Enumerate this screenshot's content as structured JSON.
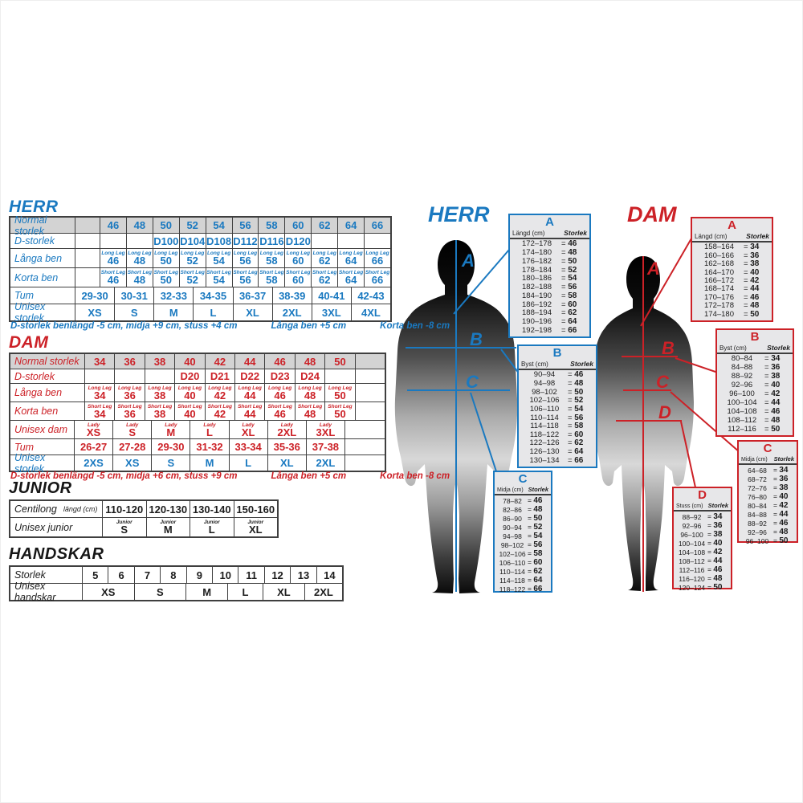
{
  "colors": {
    "blue": "#1a79c0",
    "red": "#cc2127",
    "border": "#3f3f3f",
    "header_bg": "#d3d3d3",
    "panel_bg": "#e7e7e9"
  },
  "herr": {
    "title": "HERR",
    "rows": {
      "normal": {
        "label": "Normal storlek",
        "values": [
          "",
          "46",
          "48",
          "50",
          "52",
          "54",
          "56",
          "58",
          "60",
          "62",
          "64",
          "66"
        ]
      },
      "d": {
        "label": "D-storlek",
        "values": [
          "",
          "",
          "",
          "D100",
          "D104",
          "D108",
          "D112",
          "D116",
          "D120",
          "",
          "",
          ""
        ]
      },
      "langa": {
        "label": "Långa ben",
        "sub": "Long Leg",
        "values": [
          "",
          "46",
          "48",
          "50",
          "52",
          "54",
          "56",
          "58",
          "60",
          "62",
          "64",
          "66"
        ]
      },
      "korta": {
        "label": "Korta ben",
        "sub": "Short Leg",
        "values": [
          "",
          "46",
          "48",
          "50",
          "52",
          "54",
          "56",
          "58",
          "60",
          "62",
          "64",
          "66"
        ]
      },
      "tum": {
        "label": "Tum",
        "values": [
          "29-30",
          "30-31",
          "32-33",
          "34-35",
          "36-37",
          "38-39",
          "40-41",
          "42-43"
        ]
      },
      "unisex": {
        "label": "Unisex storlek",
        "values": [
          "XS",
          "S",
          "M",
          "L",
          "XL",
          "2XL",
          "3XL",
          "4XL"
        ]
      }
    },
    "footnote": [
      "D-storlek benlängd -5 cm, midja +9 cm, stuss +4 cm",
      "Långa ben +5 cm",
      "Korta ben -8 cm"
    ]
  },
  "dam": {
    "title": "DAM",
    "rows": {
      "normal": {
        "label": "Normal storlek",
        "values": [
          "34",
          "36",
          "38",
          "40",
          "42",
          "44",
          "46",
          "48",
          "50",
          ""
        ]
      },
      "d": {
        "label": "D-storlek",
        "values": [
          "",
          "",
          "",
          "D20",
          "D21",
          "D22",
          "D23",
          "D24",
          "",
          ""
        ]
      },
      "langa": {
        "label": "Långa ben",
        "sub": "Long Leg",
        "values": [
          "34",
          "36",
          "38",
          "40",
          "42",
          "44",
          "46",
          "48",
          "50",
          ""
        ]
      },
      "korta": {
        "label": "Korta ben",
        "sub": "Short Leg",
        "values": [
          "34",
          "36",
          "38",
          "40",
          "42",
          "44",
          "46",
          "48",
          "50",
          ""
        ]
      },
      "unisex_dam": {
        "label": "Unisex dam",
        "sub": "Lady",
        "values": [
          "XS",
          "S",
          "M",
          "L",
          "XL",
          "2XL",
          "3XL",
          ""
        ]
      },
      "tum": {
        "label": "Tum",
        "values": [
          "26-27",
          "27-28",
          "29-30",
          "31-32",
          "33-34",
          "35-36",
          "37-38",
          ""
        ]
      },
      "unisex": {
        "label": "Unisex storlek",
        "values": [
          "2XS",
          "XS",
          "S",
          "M",
          "L",
          "XL",
          "2XL",
          ""
        ]
      }
    },
    "footnote": [
      "D-storlek benlängd -5 cm, midja +6 cm, stuss +9 cm",
      "Långa ben +5 cm",
      "Korta ben -8 cm"
    ]
  },
  "junior": {
    "title": "JUNIOR",
    "label": "Centilong",
    "label_sub": "längd (cm)",
    "ranges": [
      "110-120",
      "120-130",
      "130-140",
      "150-160"
    ],
    "unisex_label": "Unisex junior",
    "sub": "Junior",
    "sizes": [
      "S",
      "M",
      "L",
      "XL"
    ]
  },
  "handskar": {
    "title": "HANDSKAR",
    "label": "Storlek",
    "sizes": [
      "5",
      "6",
      "7",
      "8",
      "9",
      "10",
      "11",
      "12",
      "13",
      "14"
    ],
    "unisex_label": "Unisex handskar",
    "values": [
      "XS",
      "S",
      "M",
      "L",
      "XL",
      "2XL"
    ]
  },
  "figures": {
    "herr": {
      "title": "HERR",
      "letters": {
        "a": "A",
        "b": "B",
        "c": "C"
      }
    },
    "dam": {
      "title": "DAM",
      "letters": {
        "a": "A",
        "b": "B",
        "c": "C",
        "d": "D"
      }
    }
  },
  "measure_tables": {
    "herr": [
      {
        "letter": "A",
        "col1": "Längd (cm)",
        "col2": "Storlek",
        "rows": [
          [
            "172–178",
            "46"
          ],
          [
            "174–180",
            "48"
          ],
          [
            "176–182",
            "50"
          ],
          [
            "178–184",
            "52"
          ],
          [
            "180–186",
            "54"
          ],
          [
            "182–188",
            "56"
          ],
          [
            "184–190",
            "58"
          ],
          [
            "186–192",
            "60"
          ],
          [
            "188–194",
            "62"
          ],
          [
            "190–196",
            "64"
          ],
          [
            "192–198",
            "66"
          ]
        ]
      },
      {
        "letter": "B",
        "col1": "Byst (cm)",
        "col2": "Storlek",
        "rows": [
          [
            "90–94",
            "46"
          ],
          [
            "94–98",
            "48"
          ],
          [
            "98–102",
            "50"
          ],
          [
            "102–106",
            "52"
          ],
          [
            "106–110",
            "54"
          ],
          [
            "110–114",
            "56"
          ],
          [
            "114–118",
            "58"
          ],
          [
            "118–122",
            "60"
          ],
          [
            "122–126",
            "62"
          ],
          [
            "126–130",
            "64"
          ],
          [
            "130–134",
            "66"
          ]
        ]
      },
      {
        "letter": "C",
        "col1": "Midja (cm)",
        "col2": "Storlek",
        "rows": [
          [
            "78–82",
            "46"
          ],
          [
            "82–86",
            "48"
          ],
          [
            "86–90",
            "50"
          ],
          [
            "90–94",
            "52"
          ],
          [
            "94–98",
            "54"
          ],
          [
            "98–102",
            "56"
          ],
          [
            "102–106",
            "58"
          ],
          [
            "106–110",
            "60"
          ],
          [
            "110–114",
            "62"
          ],
          [
            "114–118",
            "64"
          ],
          [
            "118–122",
            "66"
          ]
        ]
      }
    ],
    "dam": [
      {
        "letter": "A",
        "col1": "Längd (cm)",
        "col2": "Storlek",
        "rows": [
          [
            "158–164",
            "34"
          ],
          [
            "160–166",
            "36"
          ],
          [
            "162–168",
            "38"
          ],
          [
            "164–170",
            "40"
          ],
          [
            "166–172",
            "42"
          ],
          [
            "168–174",
            "44"
          ],
          [
            "170–176",
            "46"
          ],
          [
            "172–178",
            "48"
          ],
          [
            "174–180",
            "50"
          ]
        ]
      },
      {
        "letter": "B",
        "col1": "Byst (cm)",
        "col2": "Storlek",
        "rows": [
          [
            "80–84",
            "34"
          ],
          [
            "84–88",
            "36"
          ],
          [
            "88–92",
            "38"
          ],
          [
            "92–96",
            "40"
          ],
          [
            "96–100",
            "42"
          ],
          [
            "100–104",
            "44"
          ],
          [
            "104–108",
            "46"
          ],
          [
            "108–112",
            "48"
          ],
          [
            "112–116",
            "50"
          ]
        ]
      },
      {
        "letter": "C",
        "col1": "Midja (cm)",
        "col2": "Storlek",
        "rows": [
          [
            "64–68",
            "34"
          ],
          [
            "68–72",
            "36"
          ],
          [
            "72–76",
            "38"
          ],
          [
            "76–80",
            "40"
          ],
          [
            "80–84",
            "42"
          ],
          [
            "84–88",
            "44"
          ],
          [
            "88–92",
            "46"
          ],
          [
            "92–96",
            "48"
          ],
          [
            "96–100",
            "50"
          ]
        ]
      },
      {
        "letter": "D",
        "col1": "Stuss (cm)",
        "col2": "Storlek",
        "rows": [
          [
            "88–92",
            "34"
          ],
          [
            "92–96",
            "36"
          ],
          [
            "96–100",
            "38"
          ],
          [
            "100–104",
            "40"
          ],
          [
            "104–108",
            "42"
          ],
          [
            "108–112",
            "44"
          ],
          [
            "112–116",
            "46"
          ],
          [
            "116–120",
            "48"
          ],
          [
            "120–124",
            "50"
          ]
        ]
      }
    ]
  }
}
